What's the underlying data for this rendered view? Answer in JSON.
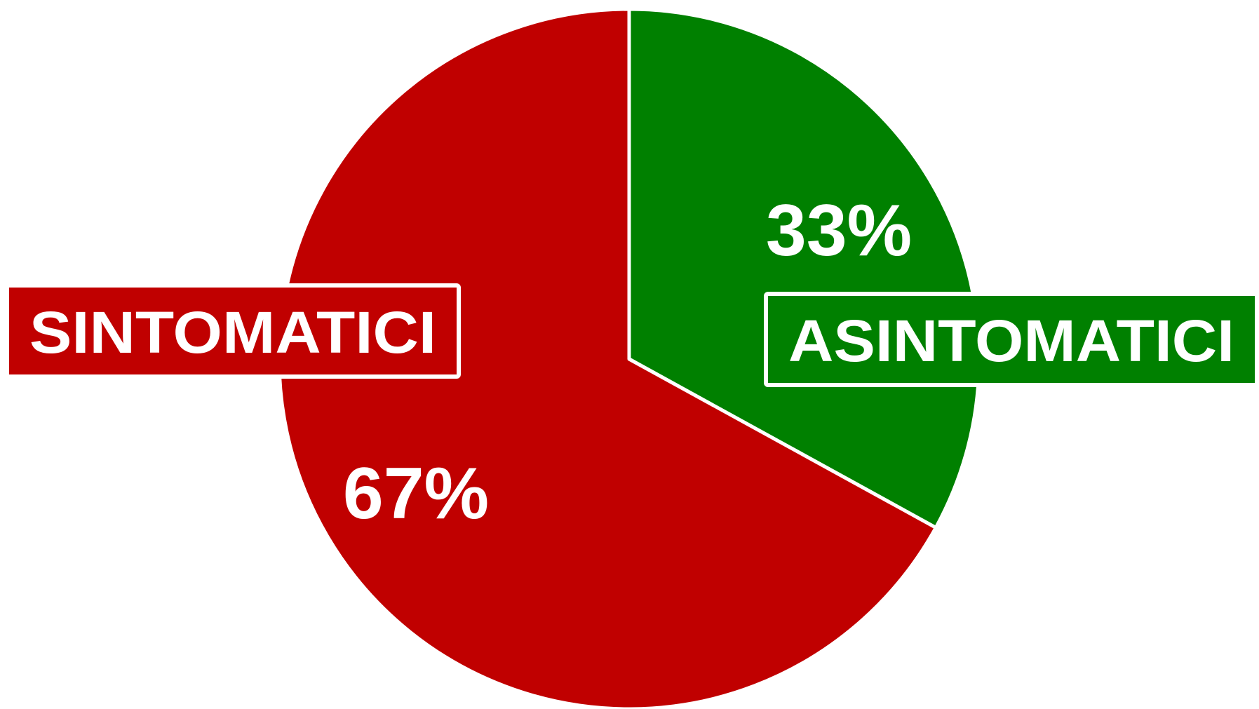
{
  "chart_data": {
    "type": "pie",
    "categories": [
      "ASINTOMATICI",
      "SINTOMATICI"
    ],
    "values": [
      33,
      67
    ],
    "value_labels": [
      "33%",
      "67%"
    ],
    "colors": [
      "#008000",
      "#c00000"
    ]
  }
}
